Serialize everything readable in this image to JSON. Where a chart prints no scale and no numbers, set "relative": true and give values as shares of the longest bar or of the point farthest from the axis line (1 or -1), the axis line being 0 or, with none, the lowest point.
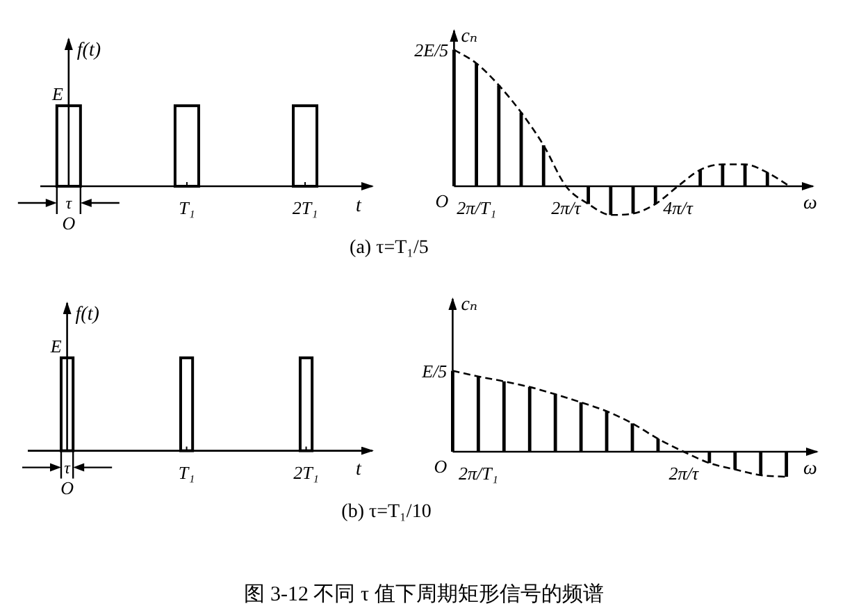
{
  "chart_data": [
    {
      "type": "bar",
      "relative": true,
      "ylabel": "f(t)",
      "xlabel": "t",
      "categories": [
        null,
        null,
        null,
        null,
        null,
        null,
        "T₁",
        null,
        null,
        null,
        null,
        "2T₁",
        null,
        null
      ],
      "series": [
        {
          "values": [
            null,
            1,
            null,
            null,
            null,
            null,
            1,
            null,
            null,
            null,
            null,
            1,
            null,
            null
          ],
          "color": "#000000"
        }
      ],
      "annotations": [
        "E",
        "τ",
        "O",
        "(a) τ=T₁/5"
      ]
    },
    {
      "type": "bar",
      "relative": true,
      "ylabel": "cₙ",
      "xlabel": "ω",
      "categories": [
        null,
        "2π/T₁",
        null,
        null,
        null,
        "2π/τ",
        null,
        null,
        null,
        null,
        "4π/τ",
        null,
        null,
        null,
        null,
        null
      ],
      "series": [
        {
          "values": [
            1,
            0.9,
            0.74,
            0.54,
            0.3,
            null,
            -0.13,
            -0.21,
            -0.2,
            -0.13,
            null,
            0.12,
            0.16,
            0.16,
            0.1,
            null
          ],
          "color": "#000000"
        },
        {
          "type": "line",
          "line_style": "dashed",
          "values": [
            1,
            0.9,
            0.74,
            0.54,
            0.3,
            0,
            -0.13,
            -0.21,
            -0.2,
            -0.13,
            0,
            0.12,
            0.16,
            0.16,
            0.1,
            0
          ],
          "color": "#000000"
        }
      ],
      "annotations": [
        "2E/5",
        "O"
      ]
    },
    {
      "type": "bar",
      "relative": true,
      "ylabel": "f(t)",
      "xlabel": "t",
      "categories": [
        null,
        null,
        null,
        null,
        null,
        null,
        null,
        null,
        null,
        null,
        null,
        null,
        null,
        "T₁",
        null,
        null,
        null,
        null,
        null,
        null,
        null,
        null,
        null,
        "2T₁",
        null,
        null,
        null,
        null,
        null
      ],
      "series": [
        {
          "values": [
            null,
            null,
            null,
            1,
            null,
            null,
            null,
            null,
            null,
            null,
            null,
            null,
            null,
            1,
            null,
            null,
            null,
            null,
            null,
            null,
            null,
            null,
            null,
            1,
            null,
            null,
            null,
            null,
            null
          ],
          "color": "#000000"
        }
      ],
      "annotations": [
        "E",
        "τ",
        "O",
        "(b) τ=T₁/10"
      ]
    },
    {
      "type": "bar",
      "relative": true,
      "ylabel": "cₙ",
      "xlabel": "ω",
      "categories": [
        null,
        "2π/T₁",
        null,
        null,
        null,
        null,
        null,
        null,
        null,
        "2π/τ",
        null,
        null,
        null,
        null
      ],
      "series": [
        {
          "values": [
            1,
            0.93,
            0.87,
            0.8,
            0.71,
            0.61,
            0.5,
            0.35,
            0.16,
            null,
            -0.14,
            -0.22,
            -0.29,
            -0.31
          ],
          "color": "#000000"
        },
        {
          "type": "line",
          "line_style": "dashed",
          "values": [
            1,
            0.93,
            0.87,
            0.8,
            0.71,
            0.61,
            0.5,
            0.35,
            0.16,
            0,
            -0.14,
            -0.22,
            -0.29,
            -0.31
          ],
          "color": "#000000"
        }
      ],
      "annotations": [
        "E/5",
        "O",
        "图 3-12 不同 τ 值下周期矩形信号的频谱"
      ]
    }
  ]
}
